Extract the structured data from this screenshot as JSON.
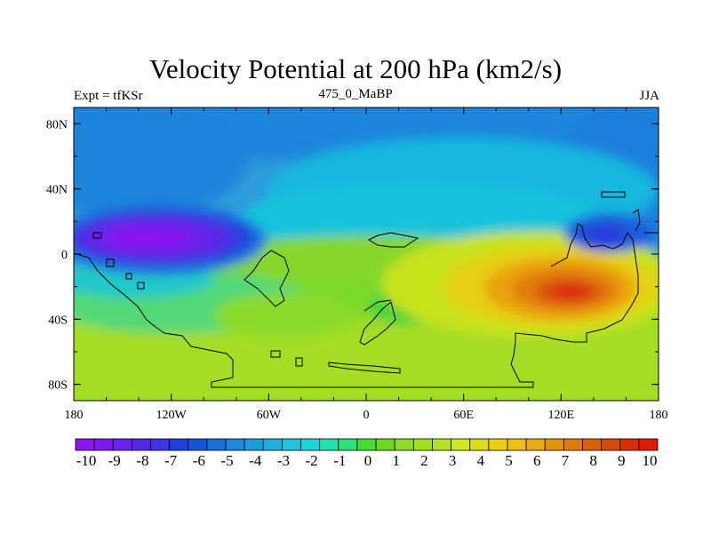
{
  "title": "Velocity Potential at 200 hPa (km2/s)",
  "subtitle_left": "Expt = tfKSr",
  "subtitle_center": "475_0_MaBP",
  "subtitle_right": "JJA",
  "map": {
    "projection": "cylindrical-equidistant",
    "lon_range": [
      -180,
      180
    ],
    "lat_range": [
      -90,
      90
    ],
    "lon_ticks": [
      {
        "value": -180,
        "label": "180"
      },
      {
        "value": -120,
        "label": "120W"
      },
      {
        "value": -60,
        "label": "60W"
      },
      {
        "value": 0,
        "label": "0"
      },
      {
        "value": 60,
        "label": "60E"
      },
      {
        "value": 120,
        "label": "120E"
      },
      {
        "value": 180,
        "label": "180"
      }
    ],
    "lat_ticks": [
      {
        "value": 80,
        "label": "80N"
      },
      {
        "value": 40,
        "label": "40N"
      },
      {
        "value": 0,
        "label": "0"
      },
      {
        "value": -40,
        "label": "40S"
      },
      {
        "value": -80,
        "label": "80S"
      }
    ],
    "field_features": [
      {
        "type": "minimum",
        "lon": -140,
        "lat": 8,
        "value": -10
      },
      {
        "type": "minimum",
        "lon": 160,
        "lat": 10,
        "value": -7
      },
      {
        "type": "maximum",
        "lon": 125,
        "lat": -23,
        "value": 9.5
      },
      {
        "type": "local-max",
        "lon": 25,
        "lat": -32,
        "value": 3
      }
    ]
  },
  "colorbar": {
    "labels": [
      "-10",
      "-9",
      "-8",
      "-7",
      "-6",
      "-5",
      "-4",
      "-3",
      "-2",
      "-1",
      "0",
      "1",
      "2",
      "3",
      "4",
      "5",
      "6",
      "7",
      "8",
      "9",
      "10"
    ],
    "colors": [
      "#8B16F0",
      "#7A1AEE",
      "#6A22EC",
      "#5229E6",
      "#3B35E2",
      "#2040DE",
      "#1356DC",
      "#1A6FDC",
      "#1E88DE",
      "#1C9CDC",
      "#1BB0DD",
      "#1CC4DC",
      "#18D8D6",
      "#20E0AE",
      "#30E07A",
      "#48DB30",
      "#6ED820",
      "#8CDB28",
      "#A0E020",
      "#B6E024",
      "#CDE81E",
      "#DCDC14",
      "#E8CF12",
      "#EDBF10",
      "#EAAA0C",
      "#E4920C",
      "#E07A0C",
      "#DC600C",
      "#D84A0A",
      "#D4300A",
      "#E01808"
    ]
  }
}
